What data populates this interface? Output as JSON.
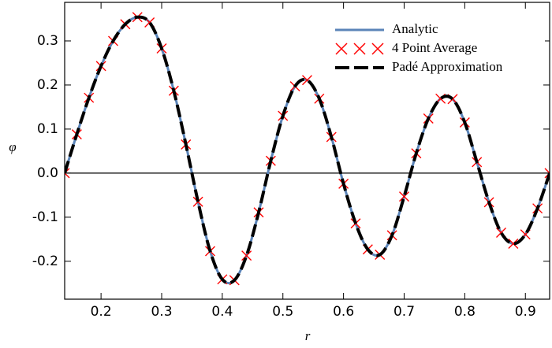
{
  "chart_data": {
    "type": "line",
    "x_label": "r",
    "y_label": "φ",
    "x": [
      0.14,
      0.16,
      0.18,
      0.2,
      0.22,
      0.24,
      0.26,
      0.28,
      0.3,
      0.32,
      0.34,
      0.36,
      0.38,
      0.4,
      0.42,
      0.44,
      0.46,
      0.48,
      0.5,
      0.52,
      0.54,
      0.56,
      0.58,
      0.6,
      0.62,
      0.64,
      0.66,
      0.68,
      0.7,
      0.72,
      0.74,
      0.76,
      0.78,
      0.8,
      0.82,
      0.84,
      0.86,
      0.88,
      0.9,
      0.92,
      0.94
    ],
    "series": [
      {
        "name": "Analytic",
        "color": "#5b84b8",
        "style": "line",
        "values": [
          0,
          0.088,
          0.171,
          0.243,
          0.3,
          0.338,
          0.354,
          0.342,
          0.283,
          0.187,
          0.065,
          -0.065,
          -0.177,
          -0.241,
          -0.243,
          -0.187,
          -0.089,
          0.028,
          0.13,
          0.197,
          0.211,
          0.169,
          0.082,
          -0.024,
          -0.114,
          -0.173,
          -0.185,
          -0.141,
          -0.053,
          0.045,
          0.124,
          0.169,
          0.168,
          0.115,
          0.025,
          -0.066,
          -0.135,
          -0.16,
          -0.139,
          -0.08,
          0
        ]
      },
      {
        "name": "4 Point Average",
        "color": "#ff0000",
        "style": "x",
        "values": [
          0,
          0.088,
          0.171,
          0.243,
          0.3,
          0.338,
          0.354,
          0.342,
          0.283,
          0.187,
          0.065,
          -0.065,
          -0.177,
          -0.241,
          -0.243,
          -0.187,
          -0.089,
          0.028,
          0.13,
          0.197,
          0.211,
          0.169,
          0.082,
          -0.024,
          -0.114,
          -0.173,
          -0.185,
          -0.141,
          -0.053,
          0.045,
          0.124,
          0.169,
          0.168,
          0.115,
          0.025,
          -0.066,
          -0.135,
          -0.16,
          -0.139,
          -0.08,
          0
        ]
      },
      {
        "name": "Padé Approximation",
        "color": "#000000",
        "style": "dashed",
        "values": [
          0,
          0.088,
          0.171,
          0.243,
          0.3,
          0.338,
          0.354,
          0.342,
          0.283,
          0.187,
          0.065,
          -0.065,
          -0.177,
          -0.241,
          -0.243,
          -0.187,
          -0.089,
          0.028,
          0.13,
          0.197,
          0.211,
          0.169,
          0.082,
          -0.024,
          -0.114,
          -0.173,
          -0.185,
          -0.141,
          -0.053,
          0.045,
          0.124,
          0.169,
          0.168,
          0.115,
          0.025,
          -0.066,
          -0.135,
          -0.16,
          -0.139,
          -0.08,
          0
        ]
      }
    ],
    "xlim": [
      0.14,
      0.94
    ],
    "ylim": [
      -0.286,
      0.3875
    ],
    "xticks": [
      0.2,
      0.3,
      0.4,
      0.5,
      0.6,
      0.7,
      0.8,
      0.9
    ],
    "yticks": [
      -0.2,
      -0.1,
      {
        "value": 0,
        "label": "0.0"
      },
      0.1,
      0.2,
      0.3
    ],
    "legend": "top-right",
    "grid": false
  }
}
